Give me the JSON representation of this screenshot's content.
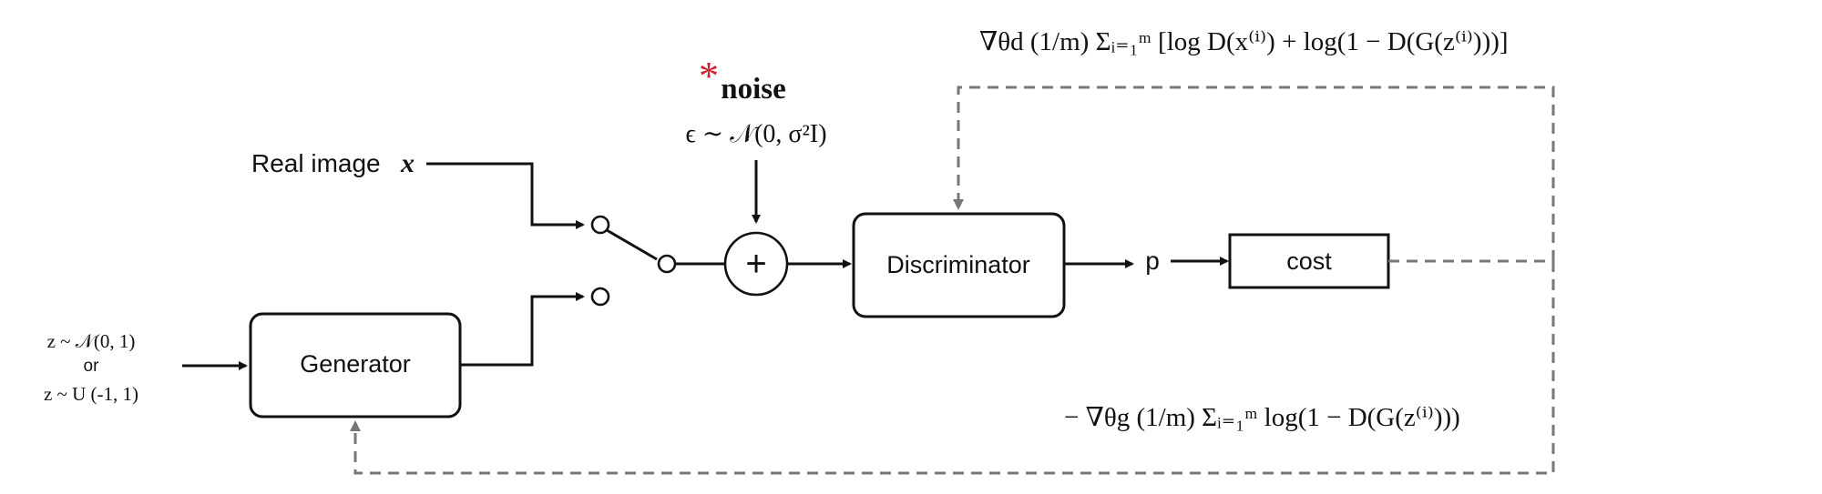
{
  "real_input": {
    "label": "Real image",
    "symbol": "x"
  },
  "latent": {
    "dist_normal": "z ~ 𝒩(0, 1)",
    "or": "or",
    "dist_uniform": "z ~  U (-1, 1)"
  },
  "generator": {
    "label": "Generator"
  },
  "discriminator": {
    "label": "Discriminator"
  },
  "noise": {
    "marker": "*",
    "label": "noise",
    "formula": "ϵ ∼ 𝒩(0, σ²I)",
    "adder_symbol": "+"
  },
  "output": {
    "label": "p"
  },
  "cost": {
    "label": "cost"
  },
  "discriminator_update": {
    "formula": "∇θd (1/m) Σᵢ₌₁ᵐ [log D(x⁽ⁱ⁾) + log(1 − D(G(z⁽ⁱ⁾)))]"
  },
  "generator_update": {
    "formula": "− ∇θg (1/m) Σᵢ₌₁ᵐ log(1 − D(G(z⁽ⁱ⁾)))"
  },
  "colors": {
    "stroke": "#111111",
    "feedback": "#777777",
    "noise_marker": "#d0202a"
  }
}
